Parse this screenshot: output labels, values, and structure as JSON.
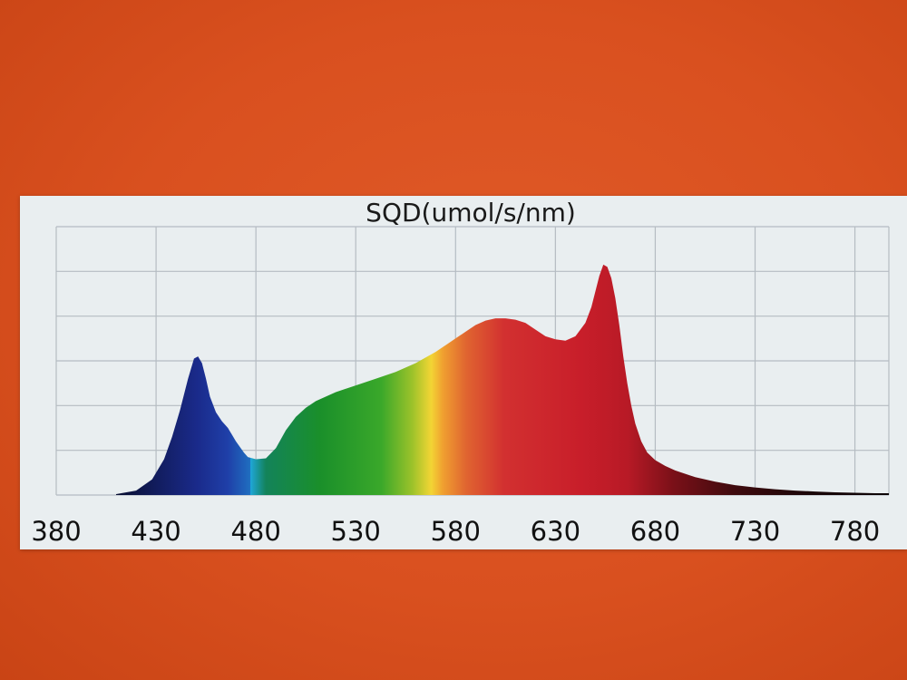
{
  "chart_data": {
    "type": "area",
    "title": "SQD(umol/s/nm)",
    "xlabel": "",
    "ylabel": "",
    "xlim": [
      380,
      797
    ],
    "ylim": [
      0,
      6
    ],
    "xticks": [
      380,
      430,
      480,
      530,
      580,
      630,
      680,
      730,
      780
    ],
    "grid": true,
    "series": [
      {
        "x": [
          410,
          420,
          428,
          434,
          438,
          442,
          446,
          449,
          451,
          453,
          455,
          457,
          460,
          463,
          466,
          470,
          474,
          476,
          480,
          485,
          490,
          495,
          500,
          505,
          510,
          520,
          530,
          540,
          550,
          560,
          570,
          575,
          580,
          585,
          590,
          595,
          600,
          605,
          610,
          615,
          620,
          625,
          630,
          635,
          640,
          645,
          648,
          650,
          652,
          654,
          656,
          658,
          660,
          662,
          664,
          666,
          668,
          670,
          673,
          676,
          680,
          685,
          690,
          700,
          710,
          720,
          730,
          740,
          750,
          760,
          770,
          780,
          790,
          797
        ],
        "y": [
          0.02,
          0.1,
          0.35,
          0.8,
          1.3,
          1.9,
          2.6,
          3.05,
          3.1,
          2.95,
          2.6,
          2.2,
          1.85,
          1.65,
          1.5,
          1.2,
          0.95,
          0.85,
          0.8,
          0.82,
          1.05,
          1.45,
          1.75,
          1.95,
          2.1,
          2.3,
          2.45,
          2.6,
          2.75,
          2.95,
          3.2,
          3.35,
          3.5,
          3.65,
          3.8,
          3.9,
          3.95,
          3.95,
          3.92,
          3.85,
          3.7,
          3.55,
          3.48,
          3.45,
          3.55,
          3.85,
          4.2,
          4.55,
          4.9,
          5.15,
          5.1,
          4.85,
          4.4,
          3.8,
          3.1,
          2.5,
          2.0,
          1.6,
          1.2,
          0.95,
          0.78,
          0.65,
          0.55,
          0.4,
          0.3,
          0.22,
          0.17,
          0.13,
          0.1,
          0.08,
          0.06,
          0.05,
          0.04,
          0.04
        ]
      }
    ],
    "colors": {
      "card_background": "#e9eef0",
      "grid": "#b5bcc2",
      "text": "#111111"
    }
  }
}
